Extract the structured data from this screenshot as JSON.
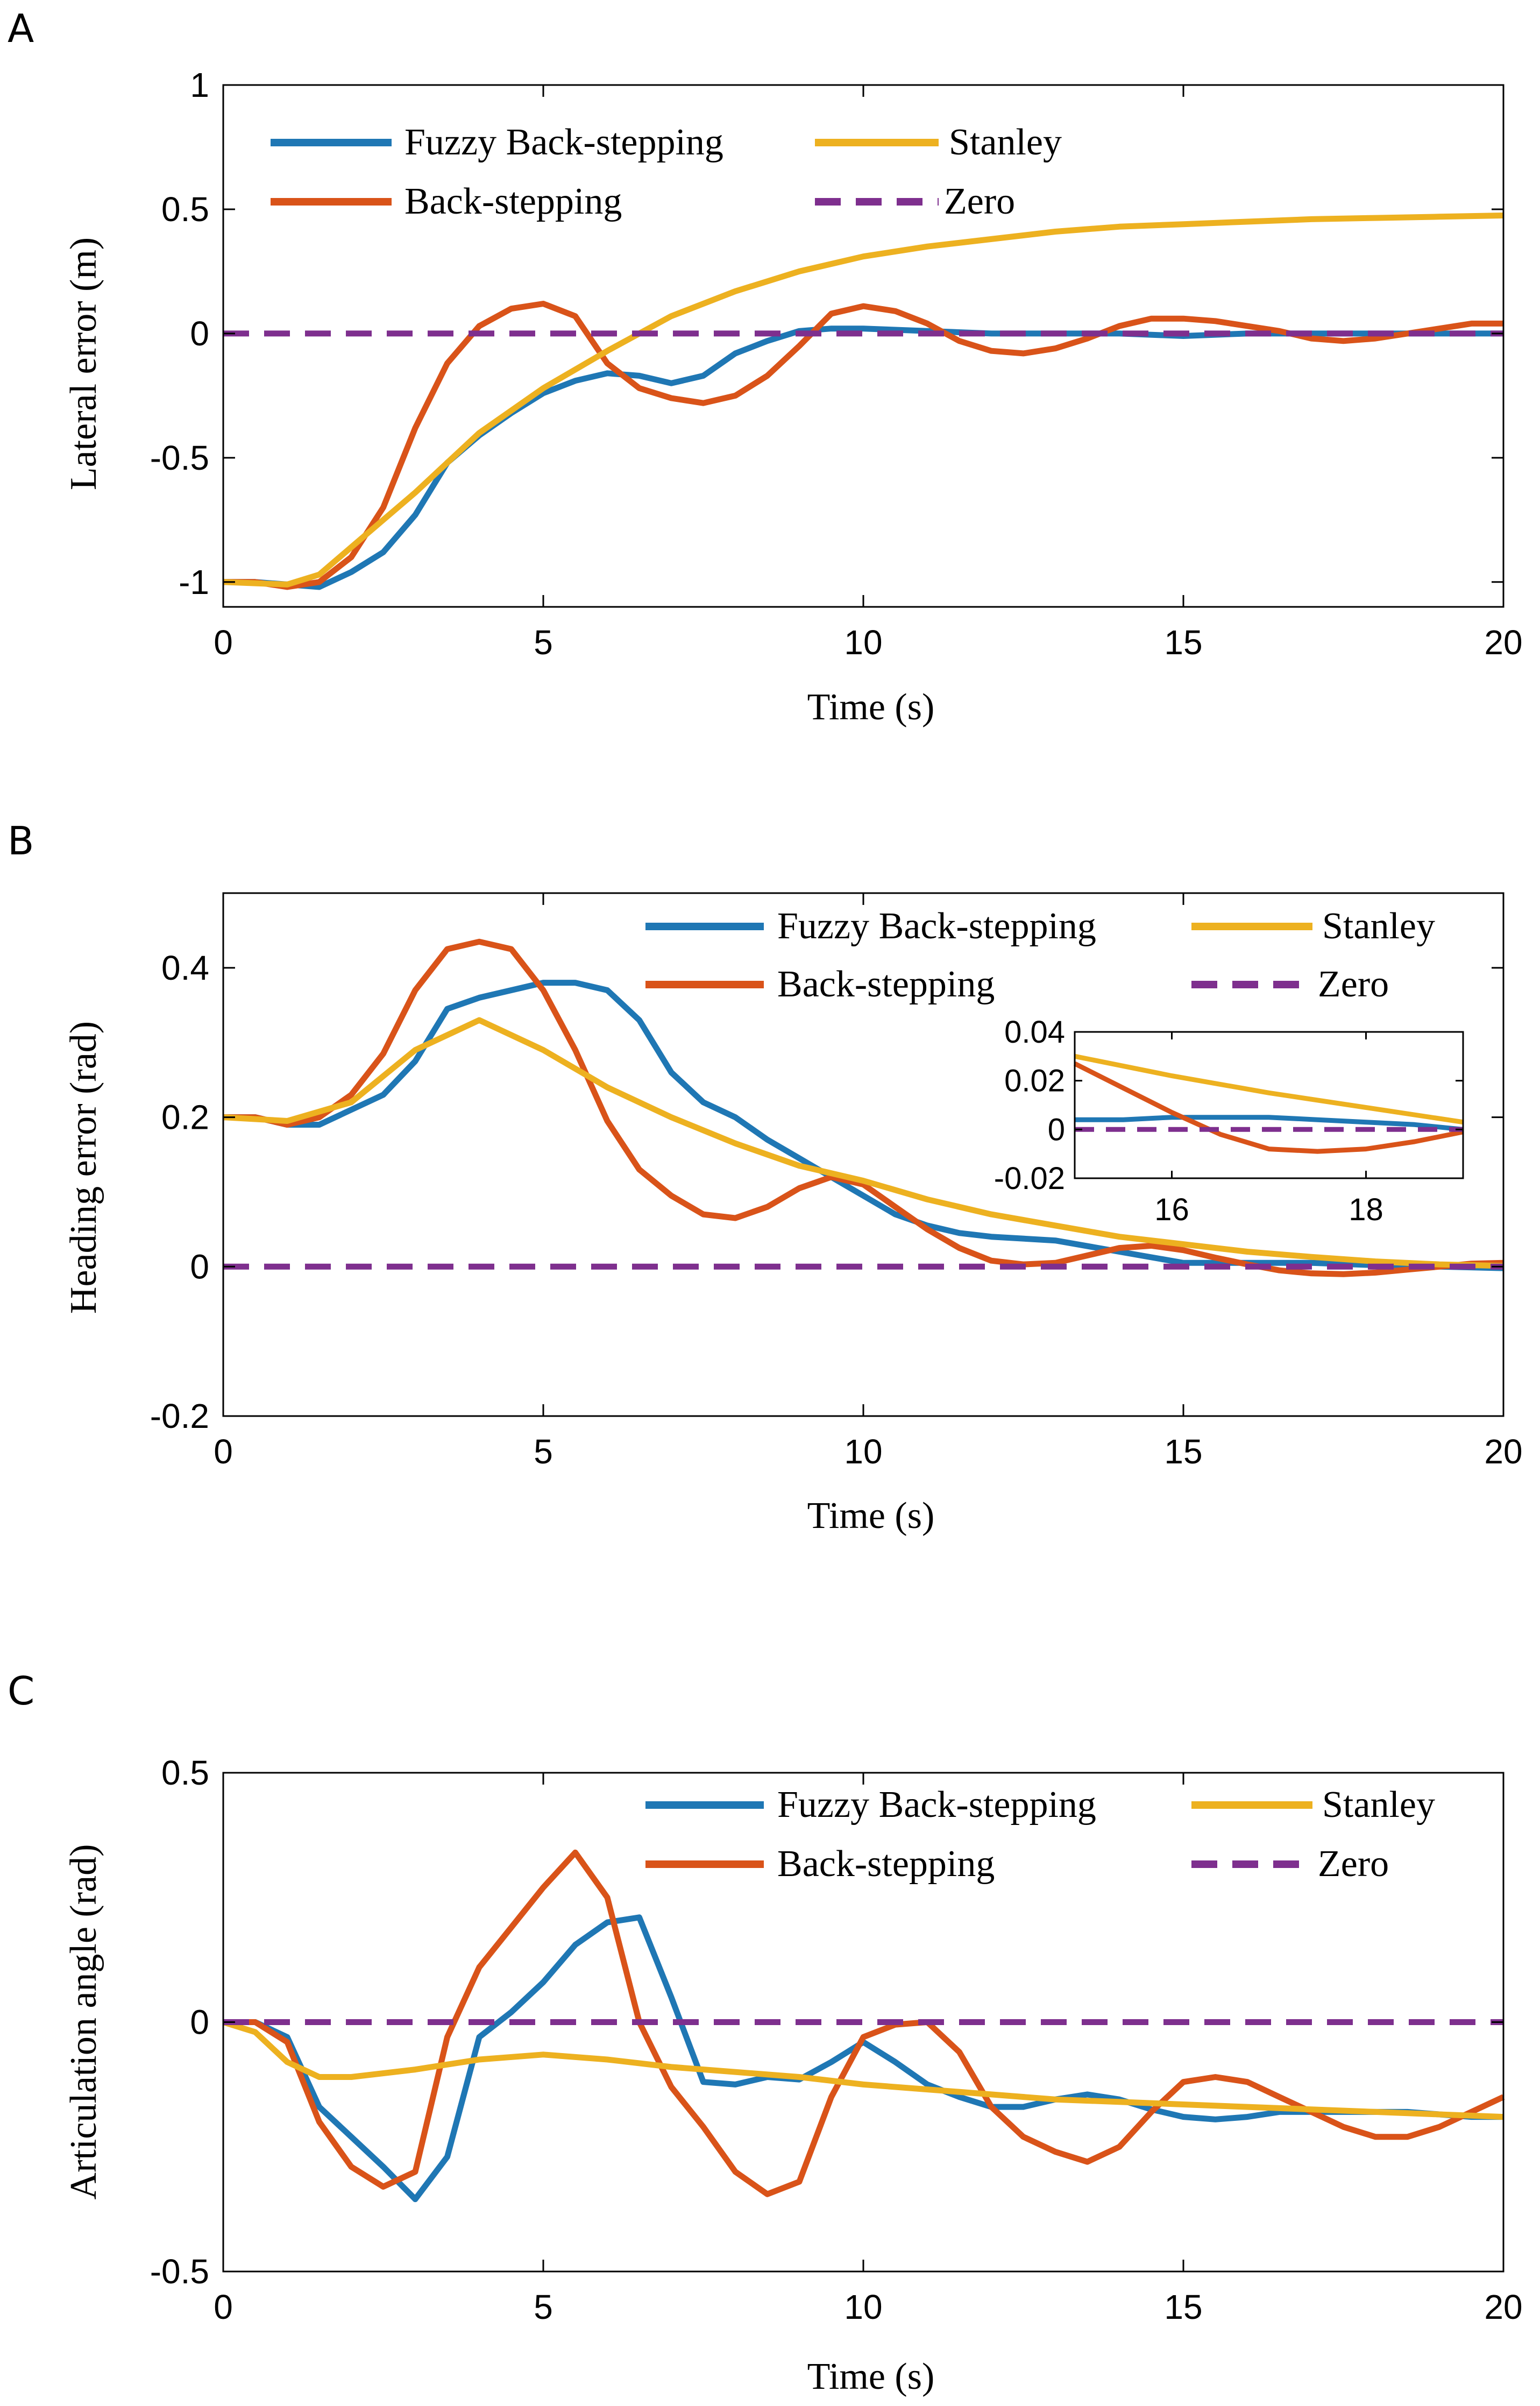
{
  "figure": {
    "panels": [
      "A",
      "B",
      "C"
    ],
    "colors": {
      "fuzzy": "#1f77b4",
      "backstepping": "#d95319",
      "stanley": "#edb120",
      "zero": "#7e2f8e"
    }
  },
  "chart_data": [
    {
      "type": "line",
      "panel": "A",
      "xlabel": "Time (s)",
      "ylabel": "Lateral error (m)",
      "xlim": [
        0,
        20
      ],
      "ylim": [
        -1.1,
        1
      ],
      "xticks": [
        "0",
        "5",
        "10",
        "15",
        "20"
      ],
      "yticks": [
        "-1",
        "-0.5",
        "0",
        "0.5",
        "1"
      ],
      "xtick_values": [
        0,
        5,
        10,
        15,
        20
      ],
      "ytick_values": [
        -1,
        -0.5,
        0,
        0.5,
        1
      ],
      "legend": [
        "Fuzzy Back-stepping",
        "Back-stepping",
        "Stanley",
        "Zero"
      ],
      "series": [
        {
          "name": "Fuzzy Back-stepping",
          "color_key": "fuzzy",
          "x": [
            0,
            0.5,
            1,
            1.5,
            2,
            2.5,
            3,
            3.5,
            4,
            4.5,
            5,
            5.5,
            6,
            6.5,
            7,
            7.5,
            8,
            8.5,
            9,
            9.5,
            10,
            11,
            12,
            13,
            14,
            15,
            16,
            17,
            18,
            19,
            20
          ],
          "values": [
            -1,
            -1,
            -1.01,
            -1.02,
            -0.96,
            -0.88,
            -0.73,
            -0.52,
            -0.41,
            -0.32,
            -0.24,
            -0.19,
            -0.16,
            -0.17,
            -0.2,
            -0.17,
            -0.08,
            -0.03,
            0.01,
            0.02,
            0.02,
            0.01,
            0,
            0,
            0,
            -0.01,
            0,
            0,
            0,
            0,
            0
          ]
        },
        {
          "name": "Back-stepping",
          "color_key": "backstepping",
          "x": [
            0,
            0.5,
            1,
            1.5,
            2,
            2.5,
            3,
            3.5,
            4,
            4.5,
            5,
            5.5,
            6,
            6.5,
            7,
            7.5,
            8,
            8.5,
            9,
            9.5,
            10,
            10.5,
            11,
            11.5,
            12,
            12.5,
            13,
            13.5,
            14,
            14.5,
            15,
            15.5,
            16,
            16.5,
            17,
            17.5,
            18,
            18.5,
            19,
            19.5,
            20
          ],
          "values": [
            -1,
            -1,
            -1.02,
            -1,
            -0.9,
            -0.7,
            -0.38,
            -0.12,
            0.03,
            0.1,
            0.12,
            0.07,
            -0.12,
            -0.22,
            -0.26,
            -0.28,
            -0.25,
            -0.17,
            -0.05,
            0.08,
            0.11,
            0.09,
            0.04,
            -0.03,
            -0.07,
            -0.08,
            -0.06,
            -0.02,
            0.03,
            0.06,
            0.06,
            0.05,
            0.03,
            0.01,
            -0.02,
            -0.03,
            -0.02,
            0,
            0.02,
            0.04,
            0.04
          ]
        },
        {
          "name": "Stanley",
          "color_key": "stanley",
          "x": [
            0,
            1,
            1.5,
            2,
            3,
            4,
            5,
            6,
            7,
            8,
            9,
            10,
            11,
            12,
            13,
            14,
            15,
            16,
            17,
            18,
            19,
            20
          ],
          "values": [
            -1,
            -1.01,
            -0.97,
            -0.86,
            -0.64,
            -0.4,
            -0.22,
            -0.07,
            0.07,
            0.17,
            0.25,
            0.31,
            0.35,
            0.38,
            0.41,
            0.43,
            0.44,
            0.45,
            0.46,
            0.465,
            0.47,
            0.475
          ]
        },
        {
          "name": "Zero",
          "color_key": "zero",
          "dashed": true,
          "x": [
            0,
            20
          ],
          "values": [
            0,
            0
          ]
        }
      ]
    },
    {
      "type": "line",
      "panel": "B",
      "xlabel": "Time (s)",
      "ylabel": "Heading error (rad)",
      "xlim": [
        0,
        20
      ],
      "ylim": [
        -0.2,
        0.5
      ],
      "xticks": [
        "0",
        "5",
        "10",
        "15",
        "20"
      ],
      "yticks": [
        "-0.2",
        "0",
        "0.2",
        "0.4"
      ],
      "xtick_values": [
        0,
        5,
        10,
        15,
        20
      ],
      "ytick_values": [
        -0.2,
        0,
        0.2,
        0.4
      ],
      "legend": [
        "Fuzzy Back-stepping",
        "Back-stepping",
        "Stanley",
        "Zero"
      ],
      "series": [
        {
          "name": "Fuzzy Back-stepping",
          "color_key": "fuzzy",
          "x": [
            0,
            0.5,
            1,
            1.5,
            2,
            2.5,
            3,
            3.5,
            4,
            4.5,
            5,
            5.5,
            6,
            6.5,
            7,
            7.5,
            8,
            8.5,
            9,
            9.5,
            10,
            10.5,
            11,
            11.5,
            12,
            13,
            14,
            15,
            16,
            17,
            18,
            19,
            20
          ],
          "values": [
            0.2,
            0.2,
            0.19,
            0.19,
            0.21,
            0.23,
            0.275,
            0.345,
            0.36,
            0.37,
            0.38,
            0.38,
            0.37,
            0.33,
            0.26,
            0.22,
            0.2,
            0.17,
            0.145,
            0.12,
            0.095,
            0.07,
            0.055,
            0.045,
            0.04,
            0.035,
            0.02,
            0.005,
            0.005,
            0.005,
            0.002,
            0,
            -0.002
          ]
        },
        {
          "name": "Back-stepping",
          "color_key": "backstepping",
          "x": [
            0,
            0.5,
            1,
            1.5,
            2,
            2.5,
            3,
            3.5,
            4,
            4.5,
            5,
            5.5,
            6,
            6.5,
            7,
            7.5,
            8,
            8.5,
            9,
            9.5,
            10,
            10.5,
            11,
            11.5,
            12,
            12.5,
            13,
            13.5,
            14,
            14.5,
            15,
            15.5,
            16,
            16.5,
            17,
            17.5,
            18,
            18.5,
            19,
            19.5,
            20
          ],
          "values": [
            0.2,
            0.2,
            0.19,
            0.2,
            0.23,
            0.285,
            0.37,
            0.425,
            0.435,
            0.425,
            0.37,
            0.29,
            0.195,
            0.13,
            0.095,
            0.07,
            0.065,
            0.08,
            0.105,
            0.12,
            0.11,
            0.08,
            0.05,
            0.025,
            0.008,
            0.003,
            0.005,
            0.015,
            0.025,
            0.028,
            0.022,
            0.012,
            0.003,
            -0.005,
            -0.009,
            -0.01,
            -0.008,
            -0.004,
            0,
            0.004,
            0.005
          ]
        },
        {
          "name": "Stanley",
          "color_key": "stanley",
          "x": [
            0,
            1,
            2,
            3,
            4,
            5,
            6,
            7,
            8,
            9,
            10,
            11,
            12,
            13,
            14,
            15,
            16,
            17,
            18,
            19,
            20
          ],
          "values": [
            0.2,
            0.195,
            0.22,
            0.29,
            0.33,
            0.29,
            0.24,
            0.2,
            0.165,
            0.135,
            0.115,
            0.09,
            0.07,
            0.055,
            0.04,
            0.03,
            0.02,
            0.013,
            0.007,
            0.003,
            0.001
          ]
        },
        {
          "name": "Zero",
          "color_key": "zero",
          "dashed": true,
          "x": [
            0,
            20
          ],
          "values": [
            0,
            0
          ]
        }
      ],
      "inset": {
        "xlim": [
          15,
          19
        ],
        "ylim": [
          -0.02,
          0.04
        ],
        "xticks": [
          "16",
          "18"
        ],
        "yticks": [
          "-0.02",
          "0",
          "0.02",
          "0.04"
        ],
        "xtick_values": [
          16,
          18
        ],
        "ytick_values": [
          -0.02,
          0,
          0.02,
          0.04
        ],
        "series": [
          {
            "name": "Fuzzy Back-stepping",
            "color_key": "fuzzy",
            "x": [
              15,
              15.5,
              16,
              16.5,
              17,
              17.5,
              18,
              18.5,
              19
            ],
            "values": [
              0.004,
              0.004,
              0.005,
              0.005,
              0.005,
              0.004,
              0.003,
              0.002,
              0
            ]
          },
          {
            "name": "Back-stepping",
            "color_key": "backstepping",
            "x": [
              15,
              15.5,
              16,
              16.5,
              17,
              17.5,
              18,
              18.5,
              19
            ],
            "values": [
              0.027,
              0.017,
              0.007,
              -0.002,
              -0.008,
              -0.009,
              -0.008,
              -0.005,
              -0.001
            ]
          },
          {
            "name": "Stanley",
            "color_key": "stanley",
            "x": [
              15,
              16,
              17,
              18,
              19
            ],
            "values": [
              0.03,
              0.022,
              0.015,
              0.009,
              0.003
            ]
          },
          {
            "name": "Zero",
            "color_key": "zero",
            "dashed": true,
            "x": [
              15,
              19
            ],
            "values": [
              0,
              0
            ]
          }
        ]
      }
    },
    {
      "type": "line",
      "panel": "C",
      "xlabel": "Time (s)",
      "ylabel": "Articulation angle (rad)",
      "xlim": [
        0,
        20
      ],
      "ylim": [
        -0.5,
        0.5
      ],
      "xticks": [
        "0",
        "5",
        "10",
        "15",
        "20"
      ],
      "yticks": [
        "-0.5",
        "0",
        "0.5"
      ],
      "xtick_values": [
        0,
        5,
        10,
        15,
        20
      ],
      "ytick_values": [
        -0.5,
        0,
        0.5
      ],
      "legend": [
        "Fuzzy Back-stepping",
        "Back-stepping",
        "Stanley",
        "Zero"
      ],
      "series": [
        {
          "name": "Fuzzy Back-stepping",
          "color_key": "fuzzy",
          "x": [
            0,
            0.5,
            1,
            1.5,
            2,
            2.5,
            3,
            3.5,
            4,
            4.5,
            5,
            5.5,
            6,
            6.5,
            7,
            7.5,
            8,
            8.5,
            9,
            9.5,
            10,
            10.5,
            11,
            11.5,
            12,
            12.5,
            13,
            13.5,
            14,
            14.5,
            15,
            15.5,
            16,
            16.5,
            17,
            17.5,
            18,
            18.5,
            19,
            19.5,
            20
          ],
          "values": [
            0,
            0,
            -0.03,
            -0.17,
            -0.23,
            -0.29,
            -0.355,
            -0.27,
            -0.03,
            0.02,
            0.08,
            0.155,
            0.2,
            0.21,
            0.05,
            -0.12,
            -0.125,
            -0.11,
            -0.115,
            -0.08,
            -0.04,
            -0.08,
            -0.125,
            -0.15,
            -0.17,
            -0.17,
            -0.155,
            -0.145,
            -0.155,
            -0.175,
            -0.19,
            -0.195,
            -0.19,
            -0.18,
            -0.18,
            -0.18,
            -0.18,
            -0.18,
            -0.185,
            -0.19,
            -0.19
          ]
        },
        {
          "name": "Back-stepping",
          "color_key": "backstepping",
          "x": [
            0,
            0.5,
            1,
            1.5,
            2,
            2.5,
            3,
            3.5,
            4,
            4.5,
            5,
            5.5,
            6,
            6.5,
            7,
            7.5,
            8,
            8.5,
            9,
            9.5,
            10,
            10.5,
            11,
            11.5,
            12,
            12.5,
            13,
            13.5,
            14,
            14.5,
            15,
            15.5,
            16,
            16.5,
            17,
            17.5,
            18,
            18.5,
            19,
            19.5,
            20
          ],
          "values": [
            0,
            0,
            -0.04,
            -0.2,
            -0.29,
            -0.33,
            -0.3,
            -0.03,
            0.11,
            0.19,
            0.27,
            0.34,
            0.25,
            0,
            -0.13,
            -0.21,
            -0.3,
            -0.345,
            -0.32,
            -0.15,
            -0.03,
            -0.005,
            0,
            -0.06,
            -0.17,
            -0.23,
            -0.26,
            -0.28,
            -0.25,
            -0.18,
            -0.12,
            -0.11,
            -0.12,
            -0.15,
            -0.18,
            -0.21,
            -0.23,
            -0.23,
            -0.21,
            -0.18,
            -0.15
          ]
        },
        {
          "name": "Stanley",
          "color_key": "stanley",
          "x": [
            0,
            0.5,
            1,
            1.5,
            2,
            3,
            4,
            5,
            6,
            7,
            8,
            9,
            10,
            11,
            12,
            13,
            14,
            15,
            16,
            17,
            18,
            19,
            20
          ],
          "values": [
            0,
            -0.02,
            -0.08,
            -0.11,
            -0.11,
            -0.095,
            -0.075,
            -0.065,
            -0.075,
            -0.09,
            -0.1,
            -0.11,
            -0.125,
            -0.135,
            -0.145,
            -0.155,
            -0.16,
            -0.165,
            -0.17,
            -0.175,
            -0.18,
            -0.185,
            -0.19
          ]
        },
        {
          "name": "Zero",
          "color_key": "zero",
          "dashed": true,
          "x": [
            0,
            20
          ],
          "values": [
            0,
            0
          ]
        }
      ]
    }
  ]
}
